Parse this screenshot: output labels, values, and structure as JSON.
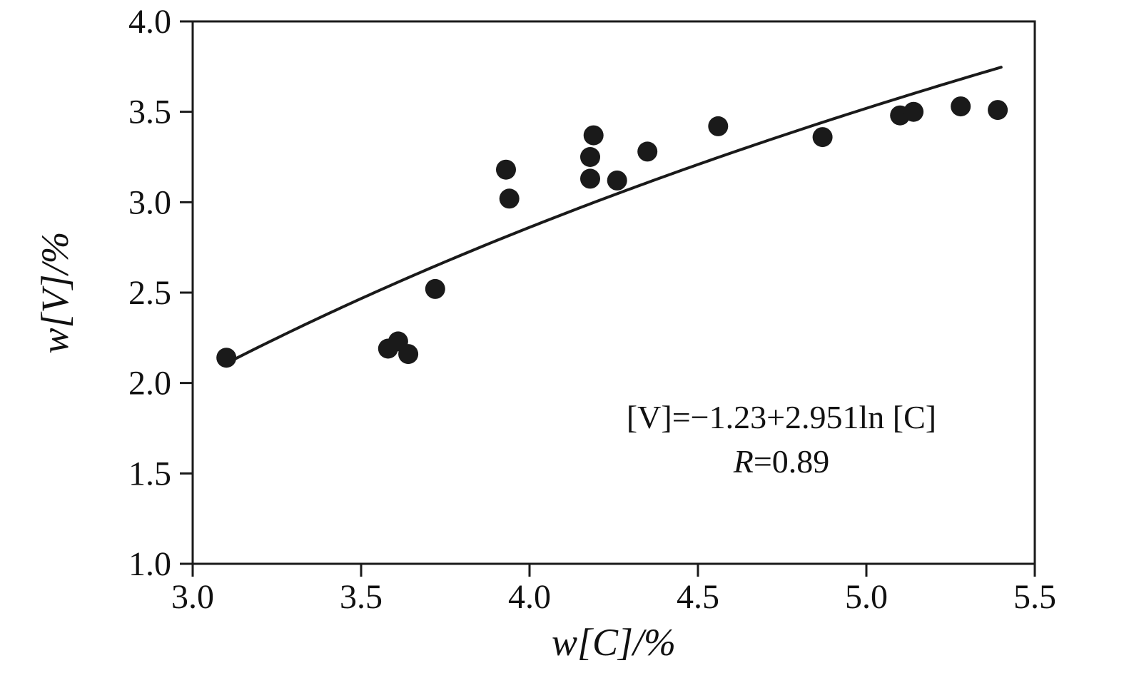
{
  "chart_data": {
    "type": "scatter",
    "title": "",
    "xlabel": "w[C]/%",
    "ylabel": "w[V]/%",
    "xlim": [
      3.0,
      5.5
    ],
    "ylim": [
      1.0,
      4.0
    ],
    "x_ticks": [
      {
        "value": 3.0,
        "label": "3.0"
      },
      {
        "value": 3.5,
        "label": "3.5"
      },
      {
        "value": 4.0,
        "label": "4.0"
      },
      {
        "value": 4.5,
        "label": "4.5"
      },
      {
        "value": 5.0,
        "label": "5.0"
      },
      {
        "value": 5.5,
        "label": "5.5"
      }
    ],
    "y_ticks": [
      {
        "value": 1.0,
        "label": "1.0"
      },
      {
        "value": 1.5,
        "label": "1.5"
      },
      {
        "value": 2.0,
        "label": "2.0"
      },
      {
        "value": 2.5,
        "label": "2.5"
      },
      {
        "value": 3.0,
        "label": "3.0"
      },
      {
        "value": 3.5,
        "label": "3.5"
      },
      {
        "value": 4.0,
        "label": "4.0"
      }
    ],
    "grid": false,
    "legend": "none",
    "points": [
      {
        "x": 3.1,
        "y": 2.14
      },
      {
        "x": 3.58,
        "y": 2.19
      },
      {
        "x": 3.61,
        "y": 2.23
      },
      {
        "x": 3.64,
        "y": 2.16
      },
      {
        "x": 3.72,
        "y": 2.52
      },
      {
        "x": 3.93,
        "y": 3.18
      },
      {
        "x": 3.94,
        "y": 3.02
      },
      {
        "x": 4.18,
        "y": 3.13
      },
      {
        "x": 4.18,
        "y": 3.25
      },
      {
        "x": 4.19,
        "y": 3.37
      },
      {
        "x": 4.26,
        "y": 3.12
      },
      {
        "x": 4.35,
        "y": 3.28
      },
      {
        "x": 4.56,
        "y": 3.42
      },
      {
        "x": 4.87,
        "y": 3.36
      },
      {
        "x": 5.1,
        "y": 3.48
      },
      {
        "x": 5.14,
        "y": 3.5
      },
      {
        "x": 5.28,
        "y": 3.53
      },
      {
        "x": 5.39,
        "y": 3.51
      }
    ],
    "fit": {
      "type": "logarithmic",
      "intercept": -1.23,
      "slope": 2.951,
      "x_start": 3.1,
      "x_end": 5.4
    },
    "annotation": {
      "equation": "[V]=−1.23+2.951ln [C]",
      "r_symbol": "R",
      "r_rest": "=0.89"
    },
    "marker_color": "#1a1a1a",
    "line_color": "#1a1a1a",
    "frame_color": "#1a1a1a"
  }
}
